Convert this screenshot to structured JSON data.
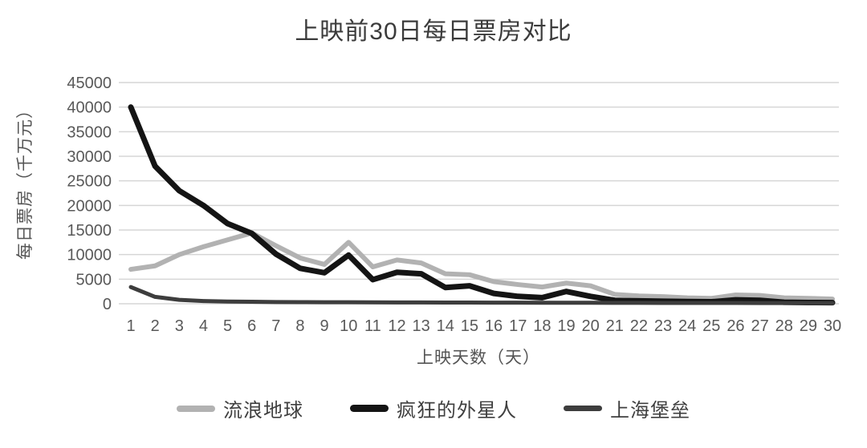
{
  "page": {
    "background": "#ffffff"
  },
  "chart_data": {
    "type": "line",
    "title": "上映前30日每日票房对比",
    "xlabel": "上映天数（天）",
    "ylabel": "每日票房（千万元）",
    "x": [
      1,
      2,
      3,
      4,
      5,
      6,
      7,
      8,
      9,
      10,
      11,
      12,
      13,
      14,
      15,
      16,
      17,
      18,
      19,
      20,
      21,
      22,
      23,
      24,
      25,
      26,
      27,
      28,
      29,
      30
    ],
    "yticks": [
      0,
      5000,
      10000,
      15000,
      20000,
      25000,
      30000,
      35000,
      40000,
      45000
    ],
    "ylim": [
      0,
      45000
    ],
    "grid": "horizontal-only",
    "legend_position": "bottom",
    "series": [
      {
        "name": "流浪地球",
        "color": "#b2b2b2",
        "stroke_width": 6,
        "values": [
          7000,
          7700,
          10000,
          11600,
          13000,
          14400,
          11800,
          9300,
          8000,
          12500,
          7500,
          8900,
          8300,
          6100,
          5900,
          4500,
          3900,
          3400,
          4200,
          3650,
          1900,
          1600,
          1450,
          1200,
          1100,
          1800,
          1700,
          1200,
          1100,
          950
        ]
      },
      {
        "name": "疯狂的外星人",
        "color": "#141414",
        "stroke_width": 7,
        "values": [
          40000,
          28000,
          23000,
          20000,
          16300,
          14300,
          10100,
          7200,
          6300,
          9900,
          4900,
          6400,
          6100,
          3300,
          3650,
          2100,
          1500,
          1250,
          2500,
          1500,
          700,
          600,
          500,
          450,
          400,
          800,
          700,
          300,
          250,
          220
        ]
      },
      {
        "name": "上海堡垒",
        "color": "#3d3d3d",
        "stroke_width": 5,
        "values": [
          3400,
          1400,
          800,
          550,
          450,
          400,
          350,
          330,
          310,
          300,
          280,
          270,
          260,
          250,
          240,
          230,
          220,
          210,
          200,
          200,
          190,
          180,
          170,
          170,
          160,
          160,
          150,
          150,
          140,
          140
        ]
      }
    ],
    "colors": {
      "gridline": "#d6d6d6",
      "tick_text": "#595959",
      "axis_title_text": "#545454",
      "title_text": "#3b3b3b"
    }
  }
}
